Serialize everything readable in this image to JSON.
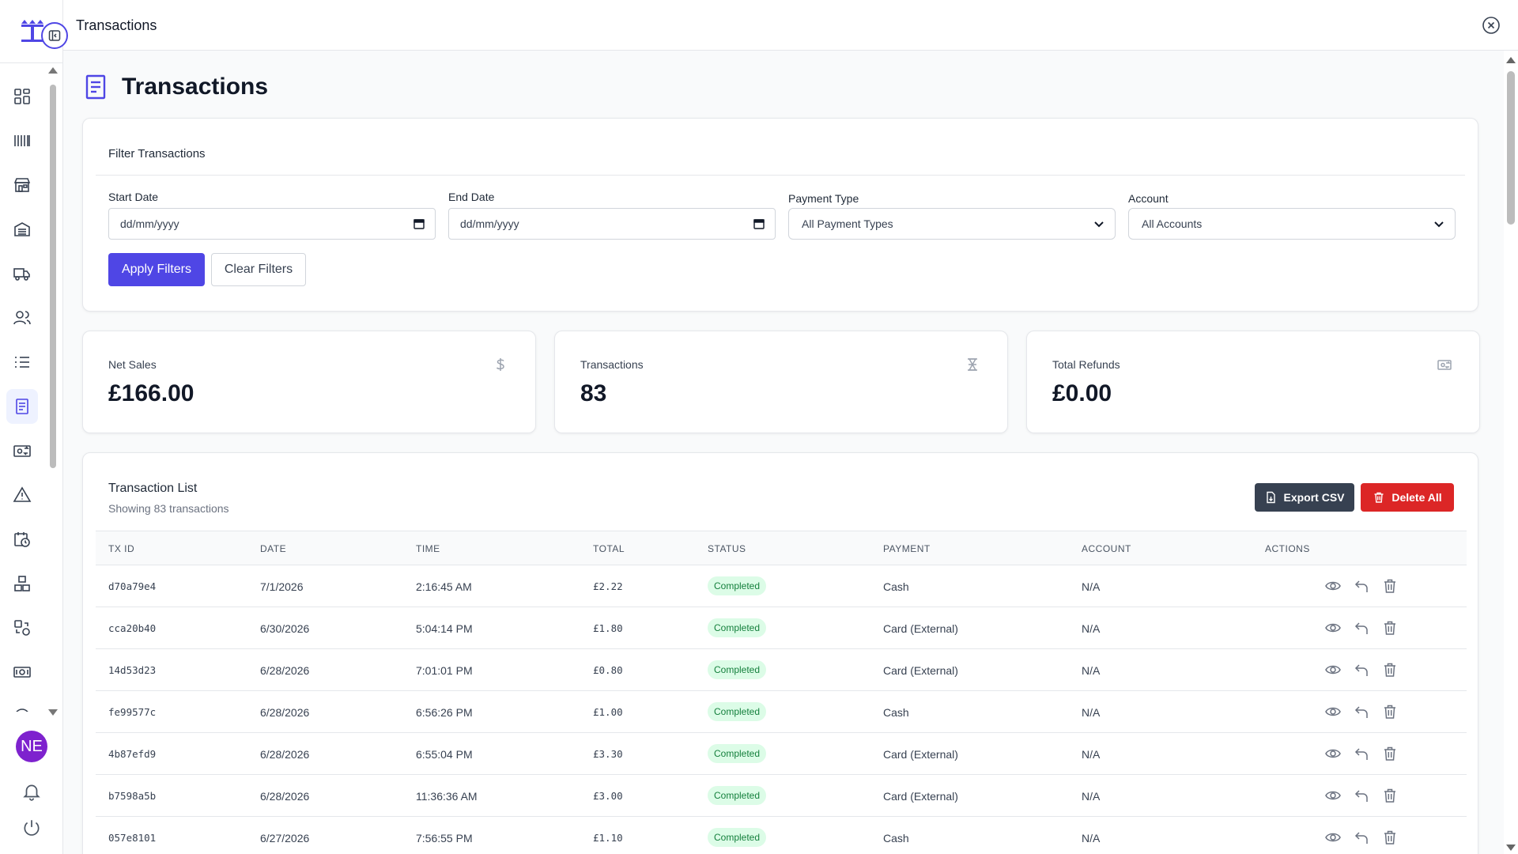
{
  "app": {
    "window_title": "Transactions",
    "user_initials": "NE"
  },
  "sidebar": {
    "items": [
      {
        "name": "dashboard",
        "icon": "grid-icon"
      },
      {
        "name": "products",
        "icon": "barcode-icon"
      },
      {
        "name": "store",
        "icon": "store-icon"
      },
      {
        "name": "warehouse",
        "icon": "warehouse-icon"
      },
      {
        "name": "deliveries",
        "icon": "truck-icon"
      },
      {
        "name": "customers",
        "icon": "users-icon"
      },
      {
        "name": "orders",
        "icon": "list-icon"
      },
      {
        "name": "transactions",
        "icon": "receipt-icon",
        "active": true
      },
      {
        "name": "refunds",
        "icon": "refund-icon"
      },
      {
        "name": "alerts",
        "icon": "warning-icon"
      },
      {
        "name": "schedule",
        "icon": "calendar-clock-icon"
      },
      {
        "name": "inventory",
        "icon": "boxes-icon"
      },
      {
        "name": "transfers",
        "icon": "transfer-icon"
      },
      {
        "name": "payments",
        "icon": "cash-icon"
      },
      {
        "name": "history",
        "icon": "clock-icon"
      }
    ]
  },
  "page": {
    "title": "Transactions"
  },
  "filters": {
    "title": "Filter Transactions",
    "start_date": {
      "label": "Start Date",
      "placeholder": "dd/mm/yyyy"
    },
    "end_date": {
      "label": "End Date",
      "placeholder": "dd/mm/yyyy"
    },
    "payment_type": {
      "label": "Payment Type",
      "value": "All Payment Types"
    },
    "account": {
      "label": "Account",
      "value": "All Accounts"
    },
    "apply_label": "Apply Filters",
    "clear_label": "Clear Filters"
  },
  "stats": {
    "net_sales": {
      "label": "Net Sales",
      "value": "£166.00"
    },
    "transactions": {
      "label": "Transactions",
      "value": "83"
    },
    "total_refunds": {
      "label": "Total Refunds",
      "value": "£0.00"
    }
  },
  "transaction_list": {
    "title": "Transaction List",
    "subtitle": "Showing 83 transactions",
    "export_label": "Export CSV",
    "delete_label": "Delete All",
    "columns": [
      "TX ID",
      "DATE",
      "TIME",
      "TOTAL",
      "STATUS",
      "PAYMENT",
      "ACCOUNT",
      "ACTIONS"
    ],
    "rows": [
      {
        "id": "d70a79e4",
        "date": "7/1/2026",
        "time": "2:16:45 AM",
        "total": "£2.22",
        "status": "Completed",
        "payment": "Cash",
        "account": "N/A"
      },
      {
        "id": "cca20b40",
        "date": "6/30/2026",
        "time": "5:04:14 PM",
        "total": "£1.80",
        "status": "Completed",
        "payment": "Card (External)",
        "account": "N/A"
      },
      {
        "id": "14d53d23",
        "date": "6/28/2026",
        "time": "7:01:01 PM",
        "total": "£0.80",
        "status": "Completed",
        "payment": "Card (External)",
        "account": "N/A"
      },
      {
        "id": "fe99577c",
        "date": "6/28/2026",
        "time": "6:56:26 PM",
        "total": "£1.00",
        "status": "Completed",
        "payment": "Cash",
        "account": "N/A"
      },
      {
        "id": "4b87efd9",
        "date": "6/28/2026",
        "time": "6:55:04 PM",
        "total": "£3.30",
        "status": "Completed",
        "payment": "Card (External)",
        "account": "N/A"
      },
      {
        "id": "b7598a5b",
        "date": "6/28/2026",
        "time": "11:36:36 AM",
        "total": "£3.00",
        "status": "Completed",
        "payment": "Card (External)",
        "account": "N/A"
      },
      {
        "id": "057e8101",
        "date": "6/27/2026",
        "time": "7:56:55 PM",
        "total": "£1.10",
        "status": "Completed",
        "payment": "Cash",
        "account": "N/A"
      }
    ]
  },
  "colors": {
    "primary": "#4f46e5",
    "danger": "#dc2626",
    "dark_button": "#374151",
    "success_bg": "#dcfce7",
    "success_text": "#15803d",
    "avatar": "#7e22ce"
  }
}
